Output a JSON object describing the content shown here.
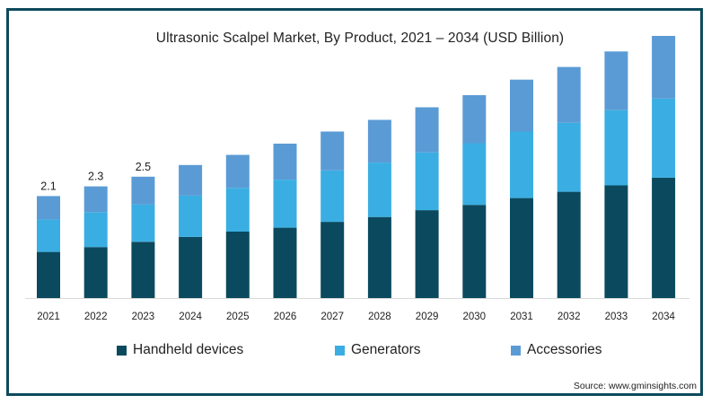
{
  "chart_data": {
    "type": "bar",
    "stacked": true,
    "title": "Ultrasonic Scalpel Market, By Product, 2021 – 2034 (USD Billion)",
    "xlabel": "",
    "ylabel": "",
    "categories": [
      "2021",
      "2022",
      "2023",
      "2024",
      "2025",
      "2026",
      "2027",
      "2028",
      "2029",
      "2030",
      "2031",
      "2032",
      "2033",
      "2034"
    ],
    "series": [
      {
        "name": "Handheld devices",
        "color": "#0b4a5e",
        "values": [
          0.95,
          1.05,
          1.16,
          1.26,
          1.37,
          1.45,
          1.57,
          1.67,
          1.81,
          1.92,
          2.06,
          2.19,
          2.32,
          2.48
        ]
      },
      {
        "name": "Generators",
        "color": "#3aaee3",
        "values": [
          0.67,
          0.72,
          0.77,
          0.85,
          0.9,
          0.99,
          1.06,
          1.12,
          1.19,
          1.27,
          1.37,
          1.42,
          1.55,
          1.63
        ]
      },
      {
        "name": "Accessories",
        "color": "#5b9bd5",
        "values": [
          0.48,
          0.53,
          0.57,
          0.63,
          0.68,
          0.74,
          0.8,
          0.88,
          0.93,
          0.99,
          1.07,
          1.15,
          1.21,
          1.29
        ]
      }
    ],
    "data_labels": [
      {
        "category": "2021",
        "text": "2.1"
      },
      {
        "category": "2022",
        "text": "2.3"
      },
      {
        "category": "2023",
        "text": "2.5"
      }
    ],
    "ylim": [
      0,
      5.4
    ],
    "grid": false,
    "legend": "bottom"
  },
  "legend_items": [
    {
      "label": "Handheld devices"
    },
    {
      "label": "Generators"
    },
    {
      "label": "Accessories"
    }
  ],
  "source": "Source: www.gminsights.com"
}
